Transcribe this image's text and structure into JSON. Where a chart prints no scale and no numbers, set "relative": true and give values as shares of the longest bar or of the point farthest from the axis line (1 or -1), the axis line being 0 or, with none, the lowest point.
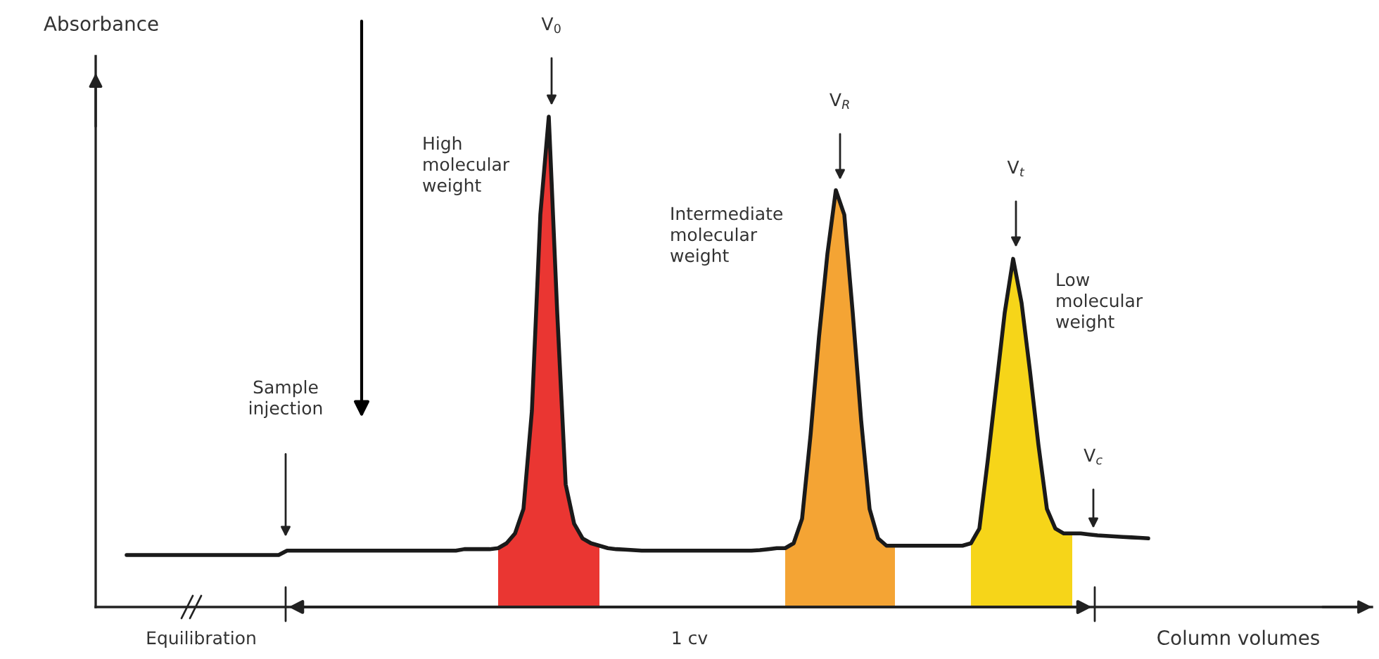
{
  "chart_data": {
    "type": "line",
    "relative": true,
    "xlabel": "Column volumes",
    "ylabel": "Absorbance",
    "legend": false,
    "categories": [
      null,
      null,
      null,
      null,
      null,
      null,
      null,
      null,
      null,
      null,
      null,
      null,
      null,
      null,
      null,
      null,
      null,
      null,
      null,
      null,
      null,
      null,
      null,
      null,
      null,
      null,
      null,
      null,
      null,
      null,
      null,
      null,
      null,
      null,
      null,
      null,
      null,
      null,
      null,
      null,
      null,
      null,
      null,
      null,
      null,
      null,
      null,
      null,
      null,
      null,
      null,
      null,
      null,
      null,
      null,
      null,
      null,
      null,
      null,
      null,
      null,
      null,
      null,
      null,
      null,
      null,
      null,
      null,
      null,
      null,
      null,
      null,
      null,
      null,
      null,
      null,
      null,
      null,
      null,
      null,
      null,
      null,
      null,
      null,
      null,
      null,
      null,
      null,
      null,
      null,
      null,
      null,
      null,
      null,
      null,
      null,
      null,
      null,
      null,
      null,
      null,
      null,
      null,
      null,
      null,
      null,
      null,
      null,
      null,
      null,
      null,
      null,
      null,
      null,
      null,
      null,
      null,
      null,
      null,
      null,
      null,
      null
    ],
    "series": [
      {
        "type": "area",
        "color": "#e8201c",
        "values": [
          null,
          null,
          null,
          null,
          null,
          null,
          null,
          null,
          null,
          null,
          null,
          null,
          null,
          null,
          null,
          null,
          null,
          null,
          null,
          null,
          null,
          null,
          null,
          null,
          null,
          null,
          null,
          null,
          null,
          null,
          null,
          null,
          null,
          null,
          null,
          null,
          null,
          null,
          null,
          null,
          null,
          null,
          null,
          null,
          0.12,
          0.13,
          0.15,
          0.2,
          0.4,
          0.8,
          1.0,
          0.6,
          0.25,
          0.17,
          0.14,
          0.13,
          0.125,
          null,
          null,
          null,
          null,
          null,
          null,
          null,
          null,
          null,
          null,
          null,
          null,
          null,
          null,
          null,
          null,
          null,
          null,
          null,
          null,
          null,
          null,
          null,
          null,
          null,
          null,
          null,
          null,
          null,
          null,
          null,
          null,
          null,
          null,
          null,
          null,
          null,
          null,
          null,
          null,
          null,
          null,
          null,
          null,
          null,
          null,
          null,
          null,
          null,
          null,
          null,
          null,
          null,
          null,
          null,
          null,
          null,
          null,
          null,
          null,
          null,
          null,
          null,
          null,
          null
        ]
      },
      {
        "type": "area",
        "color": "#f39a1e",
        "values": [
          null,
          null,
          null,
          null,
          null,
          null,
          null,
          null,
          null,
          null,
          null,
          null,
          null,
          null,
          null,
          null,
          null,
          null,
          null,
          null,
          null,
          null,
          null,
          null,
          null,
          null,
          null,
          null,
          null,
          null,
          null,
          null,
          null,
          null,
          null,
          null,
          null,
          null,
          null,
          null,
          null,
          null,
          null,
          null,
          null,
          null,
          null,
          null,
          null,
          null,
          null,
          null,
          null,
          null,
          null,
          null,
          null,
          null,
          null,
          null,
          null,
          null,
          null,
          null,
          null,
          null,
          null,
          null,
          null,
          null,
          null,
          null,
          null,
          null,
          null,
          null,
          null,
          null,
          0.12,
          0.13,
          0.18,
          0.35,
          0.55,
          0.72,
          0.85,
          0.8,
          0.6,
          0.38,
          0.2,
          0.14,
          0.125,
          0.125,
          null,
          null,
          null,
          null,
          null,
          null,
          null,
          null,
          null,
          null,
          null,
          null,
          null,
          null,
          null,
          null,
          null,
          null,
          null,
          null,
          null,
          null,
          null,
          null,
          null,
          null,
          null,
          null,
          null,
          null
        ]
      },
      {
        "type": "area",
        "color": "#f5d000",
        "values": [
          null,
          null,
          null,
          null,
          null,
          null,
          null,
          null,
          null,
          null,
          null,
          null,
          null,
          null,
          null,
          null,
          null,
          null,
          null,
          null,
          null,
          null,
          null,
          null,
          null,
          null,
          null,
          null,
          null,
          null,
          null,
          null,
          null,
          null,
          null,
          null,
          null,
          null,
          null,
          null,
          null,
          null,
          null,
          null,
          null,
          null,
          null,
          null,
          null,
          null,
          null,
          null,
          null,
          null,
          null,
          null,
          null,
          null,
          null,
          null,
          null,
          null,
          null,
          null,
          null,
          null,
          null,
          null,
          null,
          null,
          null,
          null,
          null,
          null,
          null,
          null,
          null,
          null,
          null,
          null,
          null,
          null,
          null,
          null,
          null,
          null,
          null,
          null,
          null,
          null,
          null,
          null,
          null,
          null,
          null,
          null,
          null,
          null,
          null,
          null,
          0.13,
          0.16,
          0.3,
          0.45,
          0.6,
          0.71,
          0.62,
          0.48,
          0.33,
          0.2,
          0.16,
          0.15,
          0.15,
          null,
          null,
          null,
          null,
          null,
          null,
          null,
          null,
          null
        ]
      },
      {
        "color": "#1a1a1a",
        "values": [
          0.106,
          0.106,
          0.106,
          0.106,
          0.106,
          0.106,
          0.106,
          0.106,
          0.106,
          0.106,
          0.106,
          0.106,
          0.106,
          0.106,
          0.106,
          0.106,
          0.106,
          0.106,
          0.106,
          0.115,
          0.115,
          0.115,
          0.115,
          0.115,
          0.115,
          0.115,
          0.115,
          0.115,
          0.115,
          0.115,
          0.115,
          0.115,
          0.115,
          0.115,
          0.115,
          0.115,
          0.115,
          0.115,
          0.115,
          0.115,
          0.118,
          0.118,
          0.118,
          0.118,
          0.12,
          0.13,
          0.15,
          0.2,
          0.4,
          0.8,
          1.0,
          0.6,
          0.25,
          0.17,
          0.14,
          0.13,
          0.125,
          0.12,
          0.118,
          0.117,
          0.116,
          0.115,
          0.115,
          0.115,
          0.115,
          0.115,
          0.115,
          0.115,
          0.115,
          0.115,
          0.115,
          0.115,
          0.115,
          0.115,
          0.115,
          0.116,
          0.118,
          0.12,
          0.12,
          0.13,
          0.18,
          0.35,
          0.55,
          0.72,
          0.85,
          0.8,
          0.6,
          0.38,
          0.2,
          0.14,
          0.125,
          0.125,
          0.125,
          0.125,
          0.125,
          0.125,
          0.125,
          0.125,
          0.125,
          0.125,
          0.13,
          0.16,
          0.3,
          0.45,
          0.6,
          0.71,
          0.62,
          0.48,
          0.33,
          0.2,
          0.16,
          0.15,
          0.15,
          0.15,
          0.148,
          0.146,
          0.145,
          0.144,
          0.143,
          0.142,
          0.141,
          0.14
        ]
      }
    ],
    "annotations": [
      "Equilibration",
      "1 cv",
      "Sample\ninjection",
      "High\nmolecular\nweight",
      "Intermediate\nmolecular\nweight",
      "Low\nmolecular\nweight",
      "V$_{0}$",
      "V$_{R}$",
      "V$_{t}$",
      "V$_{c}$"
    ]
  }
}
